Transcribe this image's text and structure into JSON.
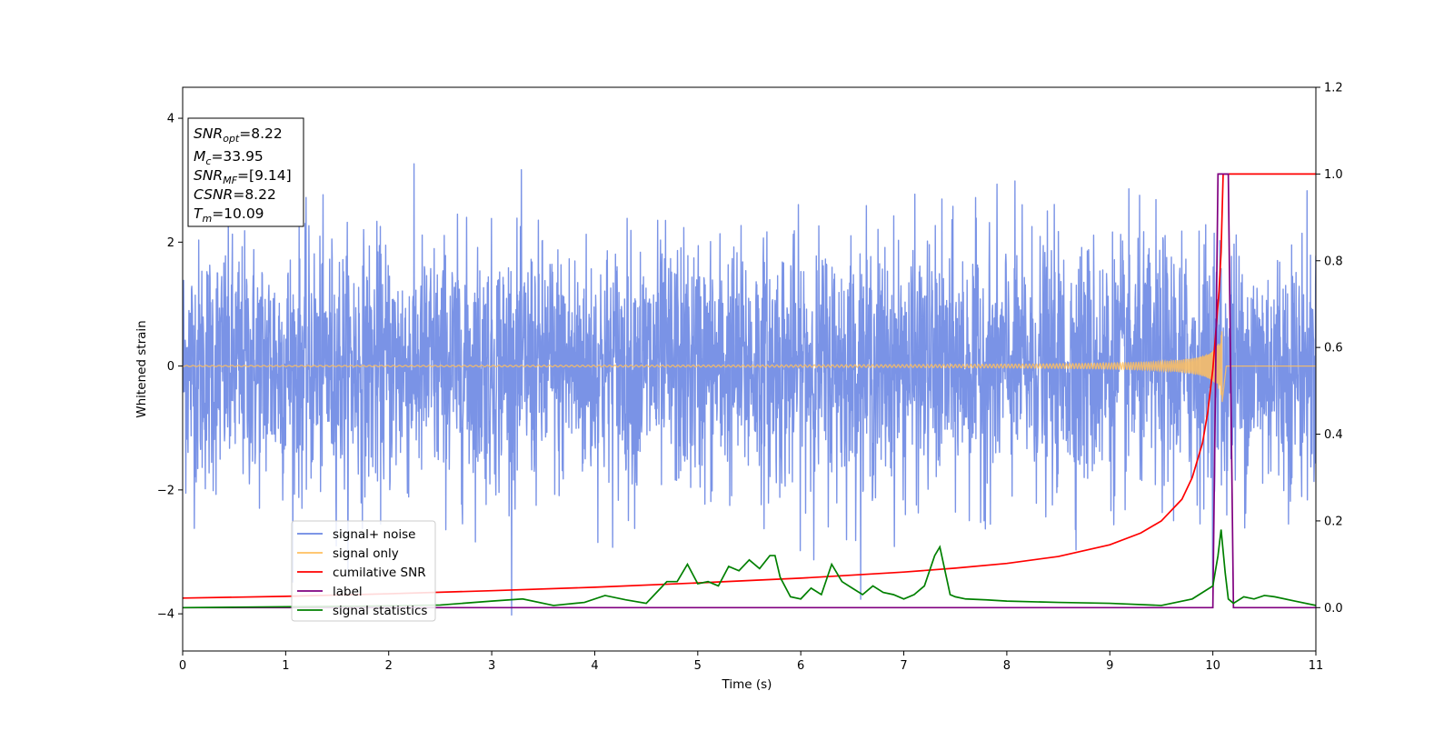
{
  "chart_data": {
    "type": "line",
    "xlabel": "Time (s)",
    "ylabel": "Whitened strain",
    "xlim": [
      0,
      11
    ],
    "ylim": [
      -4.6,
      4.5
    ],
    "y2lim": [
      -0.1,
      1.2
    ],
    "x_ticks": [
      "0",
      "1",
      "2",
      "3",
      "4",
      "5",
      "6",
      "7",
      "8",
      "9",
      "10",
      "11"
    ],
    "y_ticks": [
      "4",
      "2",
      "0",
      "−2",
      "−4"
    ],
    "y2_ticks": [
      "1.2",
      "1.0",
      "0.8",
      "0.6",
      "0.4",
      "0.2",
      "0.0"
    ],
    "grid": false,
    "legend_location": "lower-left",
    "annotation": {
      "snr_opt": {
        "main": "SNR",
        "sub": "opt",
        "value": "=8.22"
      },
      "mc": {
        "main": "M",
        "sub": "c",
        "value": "=33.95"
      },
      "snr_mf": {
        "main": "SNR",
        "sub": "MF",
        "value": "=[9.14]"
      },
      "csnr": {
        "main": "CSNR",
        "value": "=8.22"
      },
      "tm": {
        "main": "T",
        "sub": "m",
        "value": "=10.09"
      }
    },
    "merger_time": 10.09,
    "series": [
      {
        "name": "signal+ noise",
        "color": "#6b87e3",
        "axis": "left",
        "kind": "noise",
        "amplitude_sigma": 1.0
      },
      {
        "name": "signal only",
        "color": "#ffbf5f",
        "axis": "left",
        "kind": "chirp",
        "peak_amplitude": 0.6
      },
      {
        "name": "cumilative SNR",
        "color": "#ff0000",
        "axis": "right",
        "x": [
          0,
          1,
          2,
          3,
          4,
          5,
          6,
          7,
          7.5,
          8,
          8.5,
          9,
          9.3,
          9.5,
          9.7,
          9.8,
          9.9,
          9.95,
          10.0,
          10.03,
          10.06,
          10.08,
          10.1,
          10.12,
          11
        ],
        "y": [
          0.022,
          0.026,
          0.032,
          0.039,
          0.047,
          0.057,
          0.068,
          0.082,
          0.091,
          0.102,
          0.118,
          0.145,
          0.172,
          0.2,
          0.25,
          0.3,
          0.38,
          0.45,
          0.55,
          0.64,
          0.73,
          0.82,
          1.0,
          1.0,
          1.0
        ]
      },
      {
        "name": "label",
        "color": "#800080",
        "axis": "right",
        "x": [
          0,
          10.0,
          10.05,
          10.15,
          10.2,
          11
        ],
        "y": [
          0.0,
          0.0,
          1.0,
          1.0,
          0.0,
          0.0
        ]
      },
      {
        "name": "signal statistics",
        "color": "#008000",
        "axis": "right",
        "x": [
          0,
          0.5,
          1.0,
          1.5,
          2.0,
          2.5,
          3.0,
          3.3,
          3.6,
          3.9,
          4.1,
          4.3,
          4.5,
          4.6,
          4.7,
          4.8,
          4.9,
          5.0,
          5.1,
          5.2,
          5.3,
          5.4,
          5.5,
          5.6,
          5.7,
          5.75,
          5.8,
          5.9,
          6.0,
          6.1,
          6.2,
          6.3,
          6.4,
          6.5,
          6.6,
          6.7,
          6.8,
          6.9,
          7.0,
          7.1,
          7.2,
          7.3,
          7.35,
          7.45,
          7.5,
          7.6,
          7.8,
          8.0,
          8.5,
          9.0,
          9.5,
          9.8,
          10.0,
          10.05,
          10.08,
          10.12,
          10.15,
          10.2,
          10.3,
          10.4,
          10.5,
          10.6,
          10.8,
          11.0
        ],
        "y": [
          0.0,
          0.001,
          0.002,
          0.003,
          0.004,
          0.006,
          0.015,
          0.02,
          0.005,
          0.012,
          0.028,
          0.018,
          0.01,
          0.035,
          0.06,
          0.06,
          0.1,
          0.055,
          0.06,
          0.05,
          0.095,
          0.085,
          0.11,
          0.09,
          0.12,
          0.12,
          0.07,
          0.025,
          0.02,
          0.045,
          0.03,
          0.1,
          0.06,
          0.045,
          0.03,
          0.05,
          0.035,
          0.03,
          0.02,
          0.03,
          0.05,
          0.12,
          0.14,
          0.03,
          0.025,
          0.02,
          0.018,
          0.015,
          0.012,
          0.01,
          0.005,
          0.02,
          0.05,
          0.12,
          0.18,
          0.08,
          0.02,
          0.01,
          0.025,
          0.02,
          0.028,
          0.025,
          0.015,
          0.005
        ]
      }
    ]
  }
}
